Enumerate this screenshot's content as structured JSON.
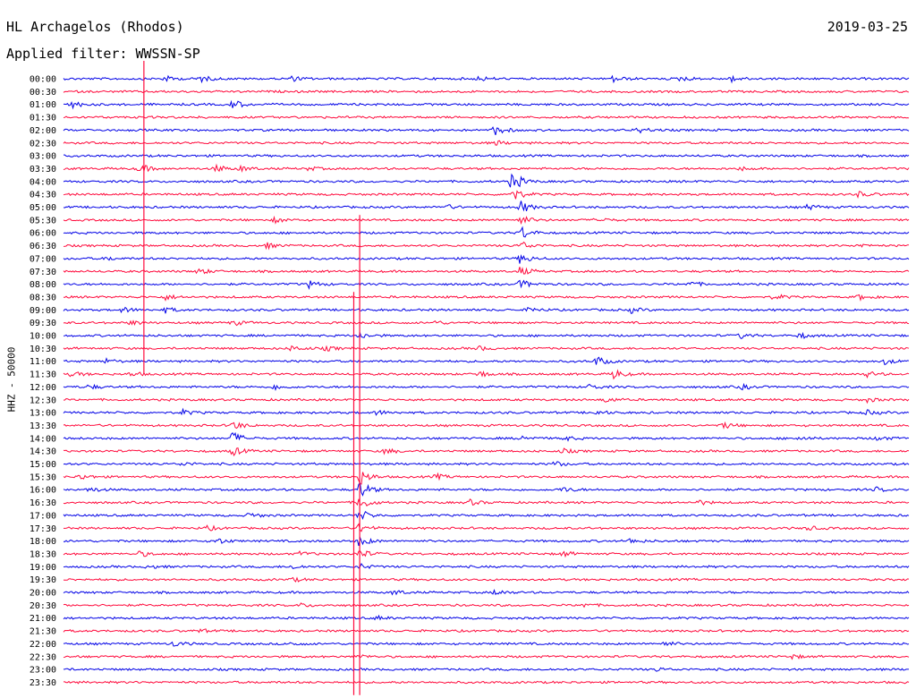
{
  "header": {
    "station": "HL Archagelos (Rhodos)",
    "date": "2019-03-25",
    "filter_text": "Applied filter: WWSSN-SP"
  },
  "axis": {
    "ylabel": "HHZ - 50000"
  },
  "colors": {
    "even_trace": "#0000e6",
    "odd_trace": "#ff0a3c",
    "text": "#000000",
    "background": "#ffffff"
  },
  "chart_data": {
    "type": "line",
    "title": "",
    "xlabel": "",
    "ylabel": "HHZ - 50000",
    "categories": [
      "00:00",
      "00:30",
      "01:00",
      "01:30",
      "02:00",
      "02:30",
      "03:00",
      "03:30",
      "04:00",
      "04:30",
      "05:00",
      "05:30",
      "06:00",
      "06:30",
      "07:00",
      "07:30",
      "08:00",
      "08:30",
      "09:00",
      "09:30",
      "10:00",
      "10:30",
      "11:00",
      "11:30",
      "12:00",
      "12:30",
      "13:00",
      "13:30",
      "14:00",
      "14:30",
      "15:00",
      "15:30",
      "16:00",
      "16:30",
      "17:00",
      "17:30",
      "18:00",
      "18:30",
      "19:00",
      "19:30",
      "20:00",
      "20:30",
      "21:00",
      "21:30",
      "22:00",
      "22:30",
      "23:00",
      "23:30"
    ],
    "grid": false,
    "series_colors": [
      "#0000e6",
      "#ff0a3c"
    ],
    "events": [
      {
        "row": 0,
        "t": 0.12,
        "amp": 3.0
      },
      {
        "row": 0,
        "t": 0.16,
        "amp": 4.0
      },
      {
        "row": 0,
        "t": 0.27,
        "amp": 2.5
      },
      {
        "row": 0,
        "t": 0.49,
        "amp": 2.5
      },
      {
        "row": 0,
        "t": 0.65,
        "amp": 3.5
      },
      {
        "row": 0,
        "t": 0.73,
        "amp": 3.0
      },
      {
        "row": 0,
        "t": 0.79,
        "amp": 3.5
      },
      {
        "row": 2,
        "t": 0.01,
        "amp": 4.0
      },
      {
        "row": 2,
        "t": 0.2,
        "amp": 5.0
      },
      {
        "row": 4,
        "t": 0.51,
        "amp": 6.0
      },
      {
        "row": 4,
        "t": 0.68,
        "amp": 3.5
      },
      {
        "row": 5,
        "t": 0.51,
        "amp": 2.5
      },
      {
        "row": 7,
        "t": 0.09,
        "amp": 5.0
      },
      {
        "row": 7,
        "t": 0.18,
        "amp": 4.0
      },
      {
        "row": 7,
        "t": 0.21,
        "amp": 3.0
      },
      {
        "row": 7,
        "t": 0.29,
        "amp": 2.0
      },
      {
        "row": 7,
        "t": 0.8,
        "amp": 2.0
      },
      {
        "row": 8,
        "t": 0.53,
        "amp": 11.0
      },
      {
        "row": 9,
        "t": 0.53,
        "amp": 8.0
      },
      {
        "row": 9,
        "t": 0.94,
        "amp": 3.0
      },
      {
        "row": 10,
        "t": 0.45,
        "amp": 3.0
      },
      {
        "row": 10,
        "t": 0.54,
        "amp": 7.0
      },
      {
        "row": 10,
        "t": 0.88,
        "amp": 3.0
      },
      {
        "row": 11,
        "t": 0.25,
        "amp": 3.0
      },
      {
        "row": 11,
        "t": 0.54,
        "amp": 5.0
      },
      {
        "row": 11,
        "t": 0.63,
        "amp": 3.0
      },
      {
        "row": 12,
        "t": 0.54,
        "amp": 8.0
      },
      {
        "row": 13,
        "t": 0.24,
        "amp": 3.0
      },
      {
        "row": 13,
        "t": 0.54,
        "amp": 5.0
      },
      {
        "row": 13,
        "t": 0.94,
        "amp": 2.0
      },
      {
        "row": 14,
        "t": 0.05,
        "amp": 2.0
      },
      {
        "row": 14,
        "t": 0.54,
        "amp": 6.0
      },
      {
        "row": 15,
        "t": 0.16,
        "amp": 3.5
      },
      {
        "row": 15,
        "t": 0.54,
        "amp": 5.0
      },
      {
        "row": 16,
        "t": 0.29,
        "amp": 4.0
      },
      {
        "row": 16,
        "t": 0.54,
        "amp": 5.0
      },
      {
        "row": 16,
        "t": 0.74,
        "amp": 3.0
      },
      {
        "row": 17,
        "t": 0.12,
        "amp": 3.0
      },
      {
        "row": 17,
        "t": 0.84,
        "amp": 3.0
      },
      {
        "row": 17,
        "t": 0.94,
        "amp": 3.0
      },
      {
        "row": 18,
        "t": 0.07,
        "amp": 3.0
      },
      {
        "row": 18,
        "t": 0.12,
        "amp": 3.0
      },
      {
        "row": 18,
        "t": 0.55,
        "amp": 3.0
      },
      {
        "row": 18,
        "t": 0.67,
        "amp": 3.0
      },
      {
        "row": 19,
        "t": 0.08,
        "amp": 2.5
      },
      {
        "row": 19,
        "t": 0.2,
        "amp": 3.0
      },
      {
        "row": 19,
        "t": 0.44,
        "amp": 2.0
      },
      {
        "row": 20,
        "t": 0.35,
        "amp": 3.5
      },
      {
        "row": 20,
        "t": 0.8,
        "amp": 3.0
      },
      {
        "row": 20,
        "t": 0.87,
        "amp": 3.0
      },
      {
        "row": 21,
        "t": 0.27,
        "amp": 3.0
      },
      {
        "row": 21,
        "t": 0.31,
        "amp": 2.5
      },
      {
        "row": 21,
        "t": 0.49,
        "amp": 2.5
      },
      {
        "row": 22,
        "t": 0.05,
        "amp": 2.5
      },
      {
        "row": 22,
        "t": 0.63,
        "amp": 5.5
      },
      {
        "row": 22,
        "t": 0.97,
        "amp": 3.0
      },
      {
        "row": 23,
        "t": 0.01,
        "amp": 3.0
      },
      {
        "row": 23,
        "t": 0.08,
        "amp": 2.5
      },
      {
        "row": 23,
        "t": 0.49,
        "amp": 4.0
      },
      {
        "row": 23,
        "t": 0.65,
        "amp": 5.5
      },
      {
        "row": 23,
        "t": 0.95,
        "amp": 3.0
      },
      {
        "row": 24,
        "t": 0.03,
        "amp": 2.5
      },
      {
        "row": 24,
        "t": 0.25,
        "amp": 3.0
      },
      {
        "row": 24,
        "t": 0.62,
        "amp": 3.0
      },
      {
        "row": 24,
        "t": 0.8,
        "amp": 3.0
      },
      {
        "row": 25,
        "t": 0.64,
        "amp": 3.0
      },
      {
        "row": 25,
        "t": 0.95,
        "amp": 2.5
      },
      {
        "row": 26,
        "t": 0.14,
        "amp": 3.0
      },
      {
        "row": 26,
        "t": 0.37,
        "amp": 2.5
      },
      {
        "row": 26,
        "t": 0.63,
        "amp": 2.5
      },
      {
        "row": 26,
        "t": 0.95,
        "amp": 2.5
      },
      {
        "row": 27,
        "t": 0.2,
        "amp": 5.0
      },
      {
        "row": 27,
        "t": 0.78,
        "amp": 3.5
      },
      {
        "row": 28,
        "t": 0.2,
        "amp": 7.0
      },
      {
        "row": 28,
        "t": 0.54,
        "amp": 3.0
      },
      {
        "row": 28,
        "t": 0.59,
        "amp": 3.0
      },
      {
        "row": 28,
        "t": 0.87,
        "amp": 2.5
      },
      {
        "row": 28,
        "t": 0.96,
        "amp": 3.0
      },
      {
        "row": 29,
        "t": 0.2,
        "amp": 5.0
      },
      {
        "row": 29,
        "t": 0.38,
        "amp": 3.0
      },
      {
        "row": 29,
        "t": 0.59,
        "amp": 2.5
      },
      {
        "row": 30,
        "t": 0.14,
        "amp": 2.0
      },
      {
        "row": 30,
        "t": 0.58,
        "amp": 3.0
      },
      {
        "row": 31,
        "t": 0.02,
        "amp": 3.0
      },
      {
        "row": 31,
        "t": 0.35,
        "amp": 9.0
      },
      {
        "row": 31,
        "t": 0.44,
        "amp": 3.0
      },
      {
        "row": 32,
        "t": 0.03,
        "amp": 3.0
      },
      {
        "row": 32,
        "t": 0.35,
        "amp": 10.0
      },
      {
        "row": 32,
        "t": 0.59,
        "amp": 3.0
      },
      {
        "row": 32,
        "t": 0.96,
        "amp": 2.5
      },
      {
        "row": 33,
        "t": 0.35,
        "amp": 8.0
      },
      {
        "row": 33,
        "t": 0.48,
        "amp": 3.0
      },
      {
        "row": 33,
        "t": 0.75,
        "amp": 2.5
      },
      {
        "row": 34,
        "t": 0.22,
        "amp": 3.0
      },
      {
        "row": 34,
        "t": 0.35,
        "amp": 6.0
      },
      {
        "row": 35,
        "t": 0.17,
        "amp": 2.5
      },
      {
        "row": 35,
        "t": 0.35,
        "amp": 5.0
      },
      {
        "row": 35,
        "t": 0.88,
        "amp": 2.5
      },
      {
        "row": 36,
        "t": 0.18,
        "amp": 4.0
      },
      {
        "row": 36,
        "t": 0.35,
        "amp": 6.0
      },
      {
        "row": 36,
        "t": 0.67,
        "amp": 3.0
      },
      {
        "row": 37,
        "t": 0.09,
        "amp": 3.0
      },
      {
        "row": 37,
        "t": 0.28,
        "amp": 2.5
      },
      {
        "row": 37,
        "t": 0.35,
        "amp": 5.0
      },
      {
        "row": 37,
        "t": 0.59,
        "amp": 3.0
      },
      {
        "row": 38,
        "t": 0.1,
        "amp": 2.5
      },
      {
        "row": 38,
        "t": 0.27,
        "amp": 2.5
      },
      {
        "row": 38,
        "t": 0.35,
        "amp": 3.0
      },
      {
        "row": 39,
        "t": 0.27,
        "amp": 2.0
      },
      {
        "row": 40,
        "t": 0.39,
        "amp": 3.0
      },
      {
        "row": 40,
        "t": 0.51,
        "amp": 3.0
      },
      {
        "row": 41,
        "t": 0.28,
        "amp": 2.0
      },
      {
        "row": 41,
        "t": 0.61,
        "amp": 3.0
      },
      {
        "row": 42,
        "t": 0.37,
        "amp": 2.0
      },
      {
        "row": 43,
        "t": 0.16,
        "amp": 2.0
      },
      {
        "row": 44,
        "t": 0.13,
        "amp": 3.0
      },
      {
        "row": 44,
        "t": 0.27,
        "amp": 2.0
      },
      {
        "row": 44,
        "t": 0.71,
        "amp": 2.5
      },
      {
        "row": 45,
        "t": 0.35,
        "amp": 2.0
      },
      {
        "row": 45,
        "t": 0.86,
        "amp": 2.5
      },
      {
        "row": 46,
        "t": 0.7,
        "amp": 2.0
      }
    ],
    "spikes": [
      {
        "t": 0.095,
        "from_row": 0,
        "to_row": 23
      },
      {
        "t": 0.343,
        "from_row": 18,
        "to_row": 48
      },
      {
        "t": 0.35,
        "from_row": 12,
        "to_row": 48
      }
    ]
  }
}
